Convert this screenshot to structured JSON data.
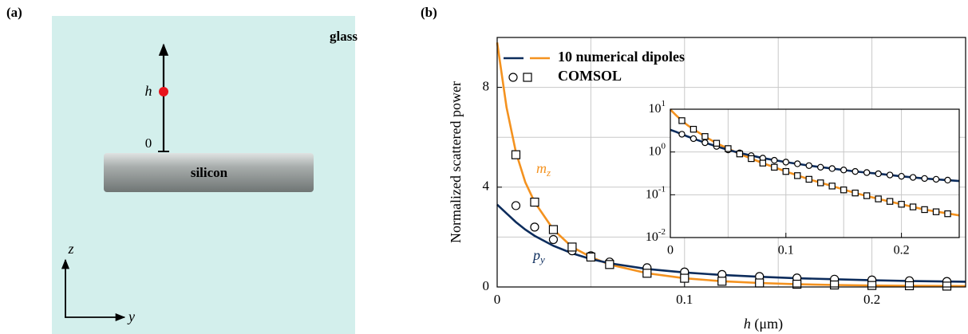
{
  "diagram": {
    "panel_label": "(a)",
    "medium": "glass",
    "waveguide": "silicon",
    "height_label": "h",
    "origin_label": "0",
    "axis_vertical": "z",
    "axis_horizontal": "y"
  },
  "panel_b_label": "(b)",
  "chart_data": [
    {
      "type": "line",
      "ylabel": "Normalized scattered power",
      "xlabel_var": "h",
      "xlabel_unit": "(μm)",
      "xlim": [
        0,
        0.25
      ],
      "xticks": [
        0,
        0.1,
        0.2
      ],
      "xminor": [
        0.05,
        0.15
      ],
      "ylim": [
        0,
        10
      ],
      "yticks": [
        0,
        4,
        8
      ],
      "yminor": [
        2,
        6
      ],
      "grid": true,
      "ylog": false,
      "x": [
        0,
        0.005,
        0.01,
        0.015,
        0.02,
        0.03,
        0.04,
        0.05,
        0.06,
        0.08,
        0.1,
        0.12,
        0.14,
        0.16,
        0.18,
        0.2,
        0.22,
        0.25
      ],
      "legend": {
        "corner": "upper left",
        "entries": [
          {
            "label": "10 numerical dipoles",
            "colors": [
              "#0c2c5c",
              "#f4921f"
            ]
          },
          {
            "label": "COMSOL",
            "markers": [
              "circle",
              "square"
            ]
          }
        ]
      },
      "series": [
        {
          "name": "m",
          "name_sub": "z",
          "color": "#f4921f",
          "style": "line",
          "values": [
            9.8,
            7.2,
            5.4,
            4.2,
            3.4,
            2.3,
            1.6,
            1.2,
            0.9,
            0.55,
            0.35,
            0.23,
            0.16,
            0.11,
            0.08,
            0.06,
            0.045,
            0.033
          ]
        },
        {
          "name": "p",
          "name_sub": "y",
          "color": "#0c2c5c",
          "style": "line",
          "values": [
            3.3,
            2.95,
            2.6,
            2.3,
            2.05,
            1.65,
            1.35,
            1.12,
            0.95,
            0.72,
            0.58,
            0.48,
            0.41,
            0.35,
            0.31,
            0.27,
            0.24,
            0.21
          ]
        },
        {
          "color": "#000000",
          "style": "circle",
          "x": [
            0.01,
            0.02,
            0.03,
            0.04,
            0.05,
            0.06,
            0.08,
            0.1,
            0.12,
            0.14,
            0.16,
            0.18,
            0.2,
            0.22,
            0.24
          ],
          "values": [
            3.26,
            2.4,
            1.9,
            1.45,
            1.25,
            1.0,
            0.77,
            0.6,
            0.5,
            0.42,
            0.36,
            0.31,
            0.28,
            0.25,
            0.22
          ]
        },
        {
          "color": "#000000",
          "style": "square",
          "x": [
            0.01,
            0.02,
            0.03,
            0.04,
            0.05,
            0.06,
            0.08,
            0.1,
            0.12,
            0.14,
            0.16,
            0.18,
            0.2,
            0.22,
            0.24
          ],
          "values": [
            5.3,
            3.4,
            2.3,
            1.6,
            1.2,
            0.9,
            0.55,
            0.35,
            0.23,
            0.16,
            0.11,
            0.08,
            0.06,
            0.05,
            0.035
          ]
        }
      ]
    },
    {
      "type": "line",
      "xlim": [
        0,
        0.25
      ],
      "xticks": [
        0,
        0.1,
        0.2
      ],
      "xminor": [
        0.05,
        0.15
      ],
      "ylim": [
        0.01,
        10
      ],
      "ylog": true,
      "grid": true,
      "yticks": [
        {
          "value": 0.01,
          "label": "10",
          "sup": "-2"
        },
        {
          "value": 0.1,
          "label": "10",
          "sup": "-1"
        },
        {
          "value": 1,
          "label": "10",
          "sup": "0"
        },
        {
          "value": 10,
          "label": "10",
          "sup": "1"
        }
      ],
      "x": [
        0,
        0.005,
        0.01,
        0.015,
        0.02,
        0.03,
        0.04,
        0.05,
        0.06,
        0.08,
        0.1,
        0.12,
        0.14,
        0.16,
        0.18,
        0.2,
        0.22,
        0.25
      ],
      "series": [
        {
          "color": "#f4921f",
          "style": "line",
          "values": [
            9.8,
            7.2,
            5.4,
            4.2,
            3.4,
            2.3,
            1.6,
            1.2,
            0.9,
            0.55,
            0.35,
            0.23,
            0.16,
            0.11,
            0.08,
            0.06,
            0.045,
            0.033
          ]
        },
        {
          "color": "#0c2c5c",
          "style": "line",
          "values": [
            3.3,
            2.95,
            2.6,
            2.3,
            2.05,
            1.65,
            1.35,
            1.12,
            0.95,
            0.72,
            0.58,
            0.48,
            0.41,
            0.35,
            0.31,
            0.27,
            0.24,
            0.21
          ]
        },
        {
          "color": "#000000",
          "style": "circle",
          "x": [
            0.01,
            0.02,
            0.03,
            0.04,
            0.05,
            0.06,
            0.07,
            0.08,
            0.09,
            0.1,
            0.11,
            0.12,
            0.13,
            0.14,
            0.15,
            0.16,
            0.17,
            0.18,
            0.19,
            0.2,
            0.21,
            0.22,
            0.23,
            0.24
          ],
          "values": [
            2.6,
            2.05,
            1.65,
            1.35,
            1.12,
            0.95,
            0.82,
            0.72,
            0.64,
            0.58,
            0.53,
            0.48,
            0.44,
            0.41,
            0.38,
            0.35,
            0.33,
            0.31,
            0.29,
            0.27,
            0.255,
            0.24,
            0.23,
            0.22
          ]
        },
        {
          "color": "#000000",
          "style": "square",
          "x": [
            0.01,
            0.02,
            0.03,
            0.04,
            0.05,
            0.06,
            0.07,
            0.08,
            0.09,
            0.1,
            0.11,
            0.12,
            0.13,
            0.14,
            0.15,
            0.16,
            0.17,
            0.18,
            0.19,
            0.2,
            0.21,
            0.22,
            0.23,
            0.24
          ],
          "values": [
            5.4,
            3.4,
            2.3,
            1.6,
            1.2,
            0.9,
            0.7,
            0.55,
            0.44,
            0.35,
            0.28,
            0.23,
            0.19,
            0.16,
            0.13,
            0.11,
            0.095,
            0.08,
            0.07,
            0.06,
            0.052,
            0.045,
            0.04,
            0.036
          ]
        }
      ]
    }
  ]
}
